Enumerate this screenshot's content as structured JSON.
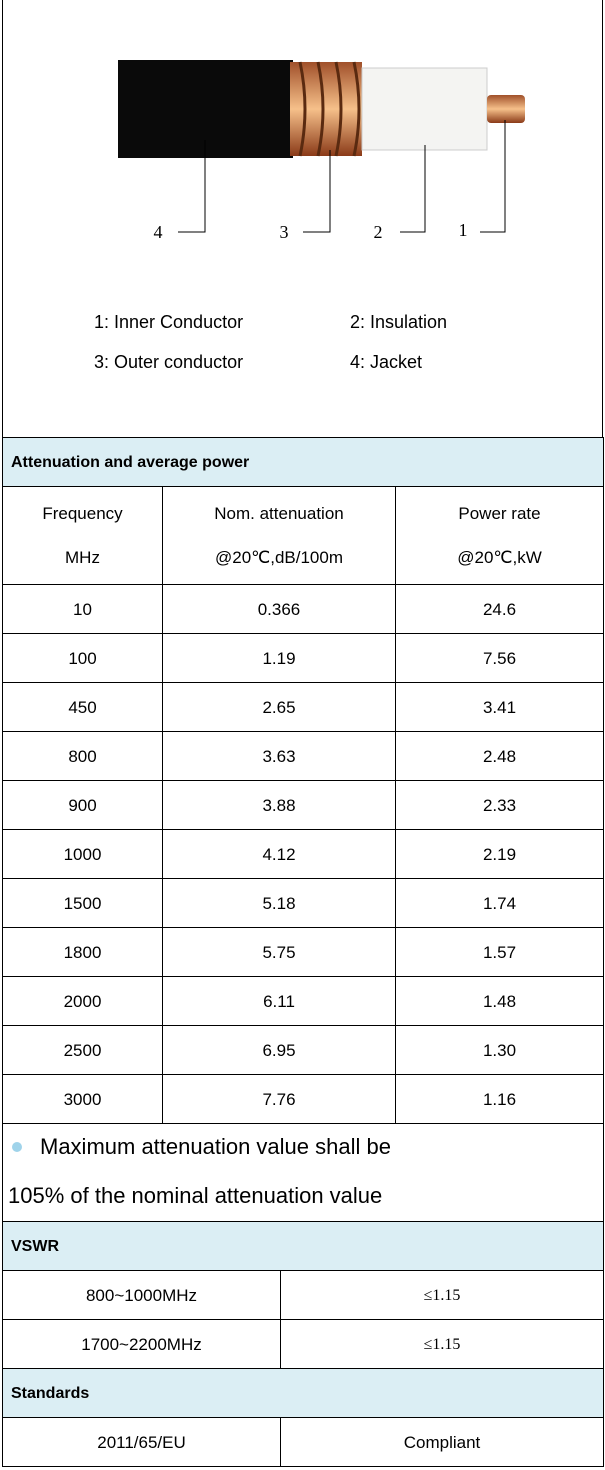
{
  "figure": {
    "callouts": [
      "4",
      "3",
      "2",
      "1"
    ],
    "legend": [
      "1: Inner Conductor",
      "2: Insulation",
      "3: Outer conductor",
      "4: Jacket"
    ]
  },
  "attenuation": {
    "title": "Attenuation and average power",
    "header": [
      [
        "Frequency",
        "Nom. attenuation",
        "Power rate"
      ],
      [
        "MHz",
        "@20℃,dB/100m",
        "@20℃,kW"
      ]
    ],
    "rows": [
      [
        "10",
        "0.366",
        "24.6"
      ],
      [
        "100",
        "1.19",
        "7.56"
      ],
      [
        "450",
        "2.65",
        "3.41"
      ],
      [
        "800",
        "3.63",
        "2.48"
      ],
      [
        "900",
        "3.88",
        "2.33"
      ],
      [
        "1000",
        "4.12",
        "2.19"
      ],
      [
        "1500",
        "5.18",
        "1.74"
      ],
      [
        "1800",
        "5.75",
        "1.57"
      ],
      [
        "2000",
        "6.11",
        "1.48"
      ],
      [
        "2500",
        "6.95",
        "1.30"
      ],
      [
        "3000",
        "7.76",
        "1.16"
      ]
    ],
    "note": [
      "Maximum attenuation value shall be",
      "105% of the nominal attenuation value"
    ]
  },
  "vswr": {
    "title": "VSWR",
    "rows": [
      [
        "800~1000MHz",
        "≤1.15"
      ],
      [
        "1700~2200MHz",
        "≤1.15"
      ]
    ]
  },
  "standards": {
    "title": "Standards",
    "rows": [
      [
        "2011/65/EU",
        "Compliant"
      ]
    ]
  }
}
